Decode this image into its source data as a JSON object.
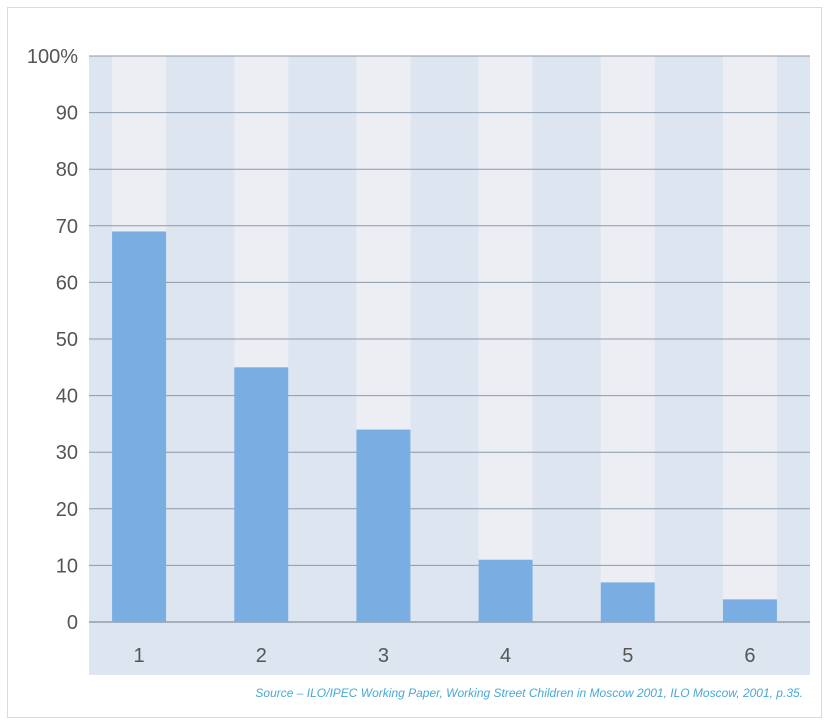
{
  "chart_data": {
    "type": "bar",
    "categories": [
      "1",
      "2",
      "3",
      "4",
      "5",
      "6"
    ],
    "values": [
      69,
      45,
      34,
      11,
      7,
      4
    ],
    "ylim": [
      0,
      100
    ],
    "yticks": [
      "0",
      "10",
      "20",
      "30",
      "40",
      "50",
      "60",
      "70",
      "80",
      "90",
      "100%"
    ],
    "grid": true,
    "colors": {
      "bar": "#7aaee3",
      "background": "#dde6f0",
      "column": "#eceef3",
      "grid": "#8a9aab",
      "text": "#555555"
    }
  },
  "source": "Source – ILO/IPEC Working Paper, Working Street Children in Moscow 2001, ILO Moscow, 2001, p.35."
}
